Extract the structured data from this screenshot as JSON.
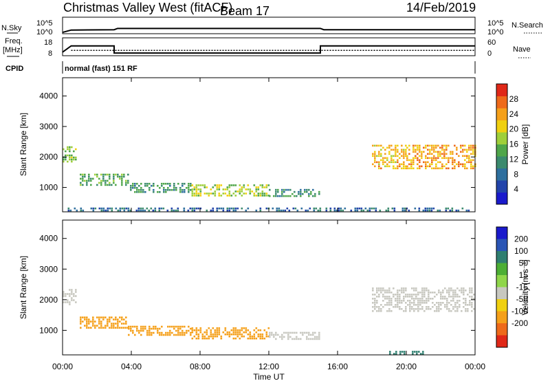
{
  "header": {
    "station": "Christmas Valley West (fitACF)",
    "beam": "Beam 17",
    "date": "14/Feb/2019"
  },
  "status_panel": {
    "nsky_label": "N.Sky",
    "nsky_ticks": [
      "10^5",
      "10^0"
    ],
    "nsearch_label": "N.Search",
    "nsearch_ticks": [
      "10^5",
      "10^0"
    ],
    "freq_label": [
      "Freq.",
      "[MHz]"
    ],
    "freq_ticks": [
      "18",
      "8"
    ],
    "nave_label": "Nave",
    "nave_ticks": [
      "60",
      "0"
    ],
    "cpid_label": "CPID",
    "cpid_value": "normal (fast) 151 RF"
  },
  "colors": {
    "power_scale": [
      "#1a1acc",
      "#2244aa",
      "#2e6f9e",
      "#3b8a6e",
      "#4fa64a",
      "#9fcf3a",
      "#f0d010",
      "#f5a01a",
      "#ee6a1a",
      "#e02818"
    ],
    "velocity_scale": [
      "#1a1acc",
      "#2a55b5",
      "#2f7e70",
      "#4cae34",
      "#8fd64a",
      "#c8c8c0",
      "#f0d010",
      "#f5a01a",
      "#ee6a1a",
      "#e02818"
    ]
  },
  "chart_data": [
    {
      "type": "line",
      "name": "status",
      "x_range_hours": [
        0,
        24
      ],
      "freq_mhz": [
        {
          "x": 0,
          "y": 10
        },
        {
          "x": 0.5,
          "y": 13.5
        },
        {
          "x": 3,
          "y": 13.5
        },
        {
          "x": 3,
          "y": 9.5
        },
        {
          "x": 15,
          "y": 9.5
        },
        {
          "x": 15,
          "y": 13.5
        },
        {
          "x": 24,
          "y": 13.5
        }
      ],
      "nave": [
        {
          "x": 0.5,
          "y": 18
        },
        {
          "x": 24,
          "y": 18
        }
      ],
      "nsky_log": [
        {
          "x": 0,
          "y": 0.4
        },
        {
          "x": 0.5,
          "y": 1.1
        },
        {
          "x": 3,
          "y": 1.2
        },
        {
          "x": 3.2,
          "y": 1.6
        },
        {
          "x": 15,
          "y": 1.6
        },
        {
          "x": 15.2,
          "y": 1.2
        },
        {
          "x": 24,
          "y": 1.2
        }
      ]
    },
    {
      "type": "heatmap",
      "name": "power",
      "xlabel": "",
      "ylabel": "Slant Range [km]",
      "ylim": [
        200,
        4600
      ],
      "yticks": [
        1000,
        2000,
        3000,
        4000
      ],
      "xlim": [
        0,
        24
      ],
      "colorbar": {
        "label": "Power [dB]",
        "ticks": [
          4,
          8,
          12,
          16,
          20,
          24,
          28
        ],
        "range": [
          0,
          32
        ]
      },
      "features": [
        {
          "desc": "ground band",
          "x": [
            0.3,
            23.8
          ],
          "y": [
            260,
            340
          ],
          "v": 8
        },
        {
          "x": [
            0.0,
            0.8
          ],
          "y": [
            1850,
            2350
          ],
          "v": 16
        },
        {
          "x": [
            1.0,
            3.8
          ],
          "y": [
            1050,
            1450
          ],
          "v": 14
        },
        {
          "x": [
            3.8,
            7.5
          ],
          "y": [
            850,
            1150
          ],
          "v": 12
        },
        {
          "x": [
            7.5,
            12.0
          ],
          "y": [
            750,
            1100
          ],
          "v": 18
        },
        {
          "x": [
            12.0,
            15.0
          ],
          "y": [
            700,
            950
          ],
          "v": 12
        },
        {
          "x": [
            18.0,
            20.0
          ],
          "y": [
            1600,
            2400
          ],
          "v": 22
        },
        {
          "x": [
            20.0,
            24.0
          ],
          "y": [
            1600,
            2400
          ],
          "v": 24
        }
      ]
    },
    {
      "type": "heatmap",
      "name": "velocity",
      "xlabel": "Time UT",
      "ylabel": "Slant Range [km]",
      "ylim": [
        200,
        4600
      ],
      "yticks": [
        1000,
        2000,
        3000,
        4000
      ],
      "xlim": [
        0,
        24
      ],
      "xticks": [
        "00:00",
        "04:00",
        "08:00",
        "12:00",
        "16:00",
        "20:00",
        "00:00"
      ],
      "colorbar": {
        "label": "Velocity [m s⁻¹]",
        "ticks": [
          "200",
          "100",
          "50",
          "15",
          "-15",
          "-50",
          "-100",
          "-200"
        ]
      },
      "features": [
        {
          "x": [
            0.0,
            0.8
          ],
          "y": [
            1850,
            2350
          ],
          "v": 0
        },
        {
          "x": [
            1.0,
            3.8
          ],
          "y": [
            1050,
            1450
          ],
          "v": -60
        },
        {
          "x": [
            3.8,
            7.5
          ],
          "y": [
            850,
            1150
          ],
          "v": -40
        },
        {
          "x": [
            7.5,
            12.0
          ],
          "y": [
            750,
            1100
          ],
          "v": -50
        },
        {
          "x": [
            12.0,
            15.0
          ],
          "y": [
            700,
            950
          ],
          "v": -5
        },
        {
          "x": [
            18.0,
            24.0
          ],
          "y": [
            1600,
            2400
          ],
          "v": 0
        },
        {
          "x": [
            19.0,
            21.0
          ],
          "y": [
            250,
            330
          ],
          "v": 40
        }
      ]
    }
  ]
}
